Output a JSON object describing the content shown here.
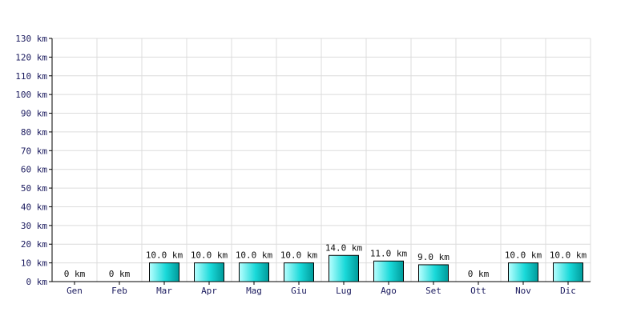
{
  "chart_data": {
    "type": "bar",
    "title": "",
    "xlabel": "",
    "ylabel": "",
    "unit": "km",
    "categories": [
      "Gen",
      "Feb",
      "Mar",
      "Apr",
      "Mag",
      "Giu",
      "Lug",
      "Ago",
      "Set",
      "Ott",
      "Nov",
      "Dic"
    ],
    "values": [
      0,
      0,
      10.0,
      10.0,
      10.0,
      10.0,
      14.0,
      11.0,
      9.0,
      0,
      10.0,
      10.0
    ],
    "data_labels": [
      "0 km",
      "0 km",
      "10.0 km",
      "10.0 km",
      "10.0 km",
      "10.0 km",
      "14.0 km",
      "11.0 km",
      "9.0 km",
      "0 km",
      "10.0 km",
      "10.0 km"
    ],
    "ylim": [
      0,
      130
    ],
    "yticks": [
      "0 km",
      "10 km",
      "20 km",
      "30 km",
      "40 km",
      "50 km",
      "60 km",
      "70 km",
      "80 km",
      "90 km",
      "100 km",
      "110 km",
      "120 km",
      "130 km"
    ],
    "ytick_values": [
      0,
      10,
      20,
      30,
      40,
      50,
      60,
      70,
      80,
      90,
      100,
      110,
      120,
      130
    ],
    "grid": true,
    "legend": "none",
    "colors": {
      "bar_light": "#b8ffff",
      "bar_mid": "#19d9d9",
      "bar_dark": "#009a9a",
      "grid": "#dcdcdc",
      "tick_text": "#1a1a5e"
    }
  }
}
